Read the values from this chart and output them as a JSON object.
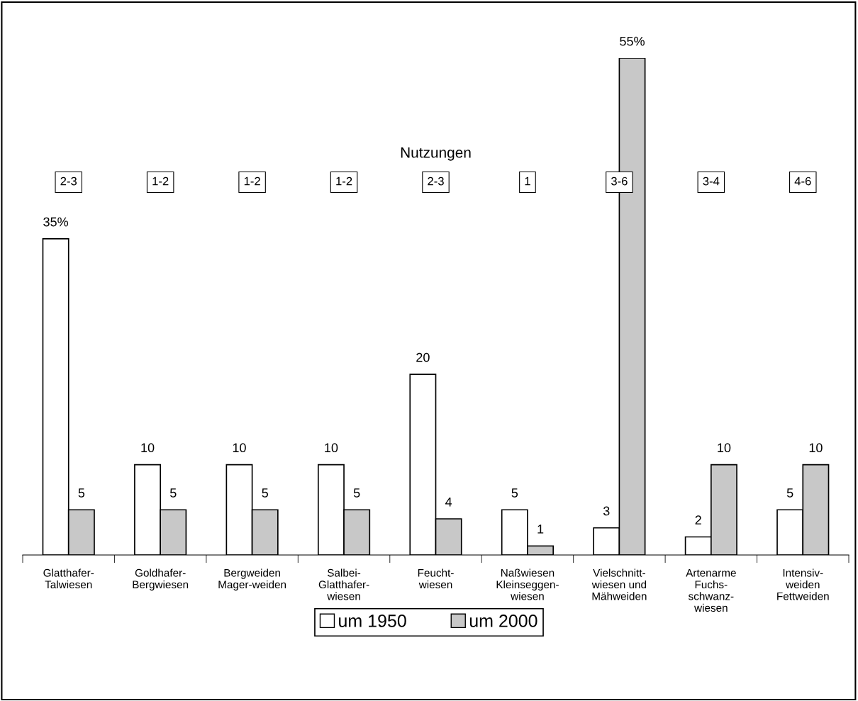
{
  "chart_data": {
    "type": "bar",
    "categories": [
      "Glatthafer-\nTalwiesen",
      "Goldhafer-\nBergwiesen",
      "Bergweiden\nMager-weiden",
      "Salbei-\nGlatthafer-\nwiesen",
      "Feucht-\nwiesen",
      "Naßwiesen\nKleinseggen-\nwiesen",
      "Vielschnitt-\nwiesen und\nMähweiden",
      "Artenarme\nFuchs-\nschwanz-\nwiesen",
      "Intensiv-\nweiden\nFettweiden"
    ],
    "series": [
      {
        "name": "um 1950",
        "color": "#ffffff",
        "values": [
          35,
          10,
          10,
          10,
          20,
          5,
          3,
          2,
          5
        ],
        "value_labels": [
          "35%",
          "10",
          "10",
          "10",
          "20",
          "5",
          "3",
          "2",
          "5"
        ]
      },
      {
        "name": "um 2000",
        "color": "#c8c8c8",
        "values": [
          5,
          5,
          5,
          5,
          4,
          1,
          55,
          10,
          10
        ],
        "value_labels": [
          "5",
          "5",
          "5",
          "5",
          "4",
          "1",
          "55%",
          "10",
          "10"
        ]
      }
    ],
    "annotations": [
      "Nutzungen",
      "2-3",
      "1-2",
      "1-2",
      "1-2",
      "2-3",
      "1",
      "3-6",
      "3-4",
      "4-6"
    ],
    "legend": "bottom",
    "grid": false
  }
}
